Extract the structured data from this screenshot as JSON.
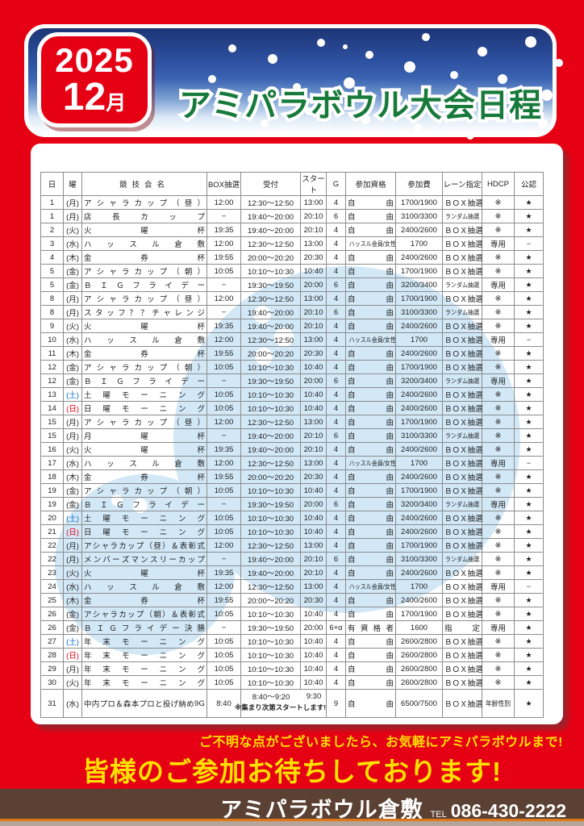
{
  "header": {
    "year": "2025",
    "month": "12",
    "month_suffix": "月",
    "title": "アミパラボウル大会日程"
  },
  "colors": {
    "page_red": "#e60013",
    "title_green": "#177a3b",
    "accent_yellow": "#ffe100",
    "footer_brown": "#5a4133",
    "footer_orange": "#e07818",
    "watermark_blue": "#d2e8f7",
    "saturday_blue": "#0068c8",
    "sunday_red": "#e60013"
  },
  "watermark": {
    "name": "bowling-ball-watermark"
  },
  "table": {
    "columns": [
      "日",
      "曜",
      "競技会名",
      "BOX抽選",
      "受付",
      "スタート",
      "G",
      "参加資格",
      "参加費",
      "レーン指定",
      "HDCP",
      "公認"
    ],
    "row_fields": [
      "day",
      "weekday",
      "name",
      "box",
      "reception",
      "start",
      "games",
      "eligibility",
      "fee",
      "lane",
      "hdcp",
      "certified",
      "note"
    ],
    "rows": [
      [
        "1",
        "月",
        "アシャラカップ（昼）",
        "12:00",
        "12:30～12:50",
        "13:00",
        "4",
        "自由",
        "1700/1900",
        "ＢＯＸ抽選",
        "※",
        "★"
      ],
      [
        "1",
        "月",
        "店長カップ",
        "−",
        "19:40～20:00",
        "20:10",
        "6",
        "自由",
        "3100/3300",
        "ランダム抽選",
        "※",
        "★"
      ],
      [
        "2",
        "火",
        "火曜杯",
        "19:35",
        "19:40～20:00",
        "20:10",
        "4",
        "自由",
        "2400/2600",
        "ＢＯＸ抽選",
        "※",
        "★"
      ],
      [
        "3",
        "水",
        "ハッスル倉敷",
        "12:00",
        "12:30～12:50",
        "13:00",
        "4",
        "ハッスル会員/女性",
        "1700",
        "ＢＯＸ抽選",
        "専用",
        "−"
      ],
      [
        "4",
        "木",
        "金券杯",
        "19:55",
        "20:00～20:20",
        "20:30",
        "4",
        "自由",
        "2400/2600",
        "ＢＯＸ抽選",
        "※",
        "★"
      ],
      [
        "5",
        "金",
        "アシャラカップ（朝）",
        "10:05",
        "10:10～10:30",
        "10:40",
        "4",
        "自由",
        "1700/1900",
        "ＢＯＸ抽選",
        "※",
        "★"
      ],
      [
        "5",
        "金",
        "ＢＩＧフライデー",
        "−",
        "19:30～19:50",
        "20:00",
        "6",
        "自由",
        "3200/3400",
        "ランダム抽選",
        "専用",
        "★"
      ],
      [
        "8",
        "月",
        "アシャラカップ（昼）",
        "12:00",
        "12:30～12:50",
        "13:00",
        "4",
        "自由",
        "1700/1900",
        "ＢＯＸ抽選",
        "※",
        "★"
      ],
      [
        "8",
        "月",
        "スタッフ？？チャレンジ",
        "−",
        "19:40～20:00",
        "20:10",
        "6",
        "自由",
        "3100/3300",
        "ランダム抽選",
        "※",
        "★"
      ],
      [
        "9",
        "火",
        "火曜杯",
        "19:35",
        "19:40～20:00",
        "20:10",
        "4",
        "自由",
        "2400/2600",
        "ＢＯＸ抽選",
        "※",
        "★"
      ],
      [
        "10",
        "水",
        "ハッスル倉敷",
        "12:00",
        "12:30～12:50",
        "13:00",
        "4",
        "ハッスル会員/女性",
        "1700",
        "ＢＯＸ抽選",
        "専用",
        "−"
      ],
      [
        "11",
        "木",
        "金券杯",
        "19:55",
        "20:00～20:20",
        "20:30",
        "4",
        "自由",
        "2400/2600",
        "ＢＯＸ抽選",
        "※",
        "★"
      ],
      [
        "12",
        "金",
        "アシャラカップ（朝）",
        "10:05",
        "10:10～10:30",
        "10:40",
        "4",
        "自由",
        "1700/1900",
        "ＢＯＸ抽選",
        "※",
        "★"
      ],
      [
        "12",
        "金",
        "ＢＩＧフライデー",
        "−",
        "19:30～19:50",
        "20:00",
        "6",
        "自由",
        "3200/3400",
        "ランダム抽選",
        "専用",
        "★"
      ],
      [
        "13",
        "土",
        "土曜モーニング",
        "10:05",
        "10:10～10:30",
        "10:40",
        "4",
        "自由",
        "2400/2600",
        "ＢＯＸ抽選",
        "※",
        "★"
      ],
      [
        "14",
        "日",
        "日曜モーニング",
        "10:05",
        "10:10～10:30",
        "10:40",
        "4",
        "自由",
        "2400/2600",
        "ＢＯＸ抽選",
        "※",
        "★"
      ],
      [
        "15",
        "月",
        "アシャラカップ（昼）",
        "12:00",
        "12:30～12:50",
        "13:00",
        "4",
        "自由",
        "1700/1900",
        "ＢＯＸ抽選",
        "※",
        "★"
      ],
      [
        "15",
        "月",
        "月曜杯",
        "−",
        "19:40～20:00",
        "20:10",
        "6",
        "自由",
        "3100/3300",
        "ランダム抽選",
        "※",
        "★"
      ],
      [
        "16",
        "火",
        "火曜杯",
        "19:35",
        "19:40～20:00",
        "20:10",
        "4",
        "自由",
        "2400/2600",
        "ＢＯＸ抽選",
        "※",
        "★"
      ],
      [
        "17",
        "水",
        "ハッスル倉敷",
        "12:00",
        "12:30～12:50",
        "13:00",
        "4",
        "ハッスル会員/女性",
        "1700",
        "ＢＯＸ抽選",
        "専用",
        "−"
      ],
      [
        "18",
        "木",
        "金券杯",
        "19:55",
        "20:00～20:20",
        "20:30",
        "4",
        "自由",
        "2400/2600",
        "ＢＯＸ抽選",
        "※",
        "★"
      ],
      [
        "19",
        "金",
        "アシャラカップ（朝）",
        "10:05",
        "10:10～10:30",
        "10:40",
        "4",
        "自由",
        "1700/1900",
        "ＢＯＸ抽選",
        "※",
        "★"
      ],
      [
        "19",
        "金",
        "ＢＩＧフライデー",
        "−",
        "19:30～19:50",
        "20:00",
        "6",
        "自由",
        "3200/3400",
        "ランダム抽選",
        "専用",
        "★"
      ],
      [
        "20",
        "土",
        "土曜モーニング",
        "10:05",
        "10:10～10:30",
        "10:40",
        "4",
        "自由",
        "2400/2600",
        "ＢＯＸ抽選",
        "※",
        "★"
      ],
      [
        "21",
        "日",
        "日曜モーニング",
        "10:05",
        "10:10～10:30",
        "10:40",
        "4",
        "自由",
        "2400/2600",
        "ＢＯＸ抽選",
        "※",
        "★"
      ],
      [
        "22",
        "月",
        "アシャラカップ（昼）＆表彰式",
        "12:00",
        "12:30～12:50",
        "13:00",
        "4",
        "自由",
        "1700/1900",
        "ＢＯＸ抽選",
        "※",
        "★"
      ],
      [
        "22",
        "月",
        "メンバーズマンスリーカップ",
        "−",
        "19:40～20:00",
        "20:10",
        "6",
        "自由",
        "3100/3300",
        "ランダム抽選",
        "※",
        "★"
      ],
      [
        "23",
        "火",
        "火曜杯",
        "19:35",
        "19:40～20:00",
        "20:10",
        "4",
        "自由",
        "2400/2600",
        "ＢＯＸ抽選",
        "※",
        "★"
      ],
      [
        "24",
        "水",
        "ハッスル倉敷",
        "12:00",
        "12:30～12:50",
        "13:00",
        "4",
        "ハッスル会員/女性",
        "1700",
        "ＢＯＸ抽選",
        "専用",
        "−"
      ],
      [
        "25",
        "木",
        "金券杯",
        "19:55",
        "20:00～20:20",
        "20:30",
        "4",
        "自由",
        "2400/2600",
        "ＢＯＸ抽選",
        "※",
        "★"
      ],
      [
        "26",
        "金",
        "アシャラカップ（朝）＆表彰式",
        "10:05",
        "10:10～10:30",
        "10:40",
        "4",
        "自由",
        "1700/1900",
        "ＢＯＸ抽選",
        "※",
        "★"
      ],
      [
        "26",
        "金",
        "ＢＩＧフライデー決勝",
        "−",
        "19:30～19:50",
        "20:00",
        "6+α",
        "有資格者",
        "1600",
        "指定",
        "専用",
        "★"
      ],
      [
        "27",
        "土",
        "年末モーニング",
        "10:05",
        "10:10～10:30",
        "10:40",
        "4",
        "自由",
        "2600/2800",
        "ＢＯＸ抽選",
        "※",
        "★"
      ],
      [
        "28",
        "日",
        "年末モーニング",
        "10:05",
        "10:10～10:30",
        "10:40",
        "4",
        "自由",
        "2600/2800",
        "ＢＯＸ抽選",
        "※",
        "★"
      ],
      [
        "29",
        "月",
        "年末モーニング",
        "10:05",
        "10:10～10:30",
        "10:40",
        "4",
        "自由",
        "2600/2800",
        "ＢＯＸ抽選",
        "※",
        "★"
      ],
      [
        "30",
        "火",
        "年末モーニング",
        "10:05",
        "10:10～10:30",
        "10:40",
        "4",
        "自由",
        "2600/2800",
        "ＢＯＸ抽選",
        "※",
        "★"
      ],
      [
        "31",
        "水",
        "中内プロ＆森本プロと投げ納め9G",
        "8:40",
        "8:40～9:20",
        "9:30",
        "9",
        "自由",
        "6500/7500",
        "ＢＯＸ抽選",
        "年齢性別",
        "★",
        "※集まり次第スタートします!"
      ]
    ]
  },
  "footer": {
    "notice": "ご不明な点がございましたら、お気軽にアミパラボウルまで!",
    "message": "皆様のご参加お待ちしております!",
    "venue": "アミパラボウル倉敷",
    "tel_label": "TEL",
    "tel": "086-430-2222"
  }
}
